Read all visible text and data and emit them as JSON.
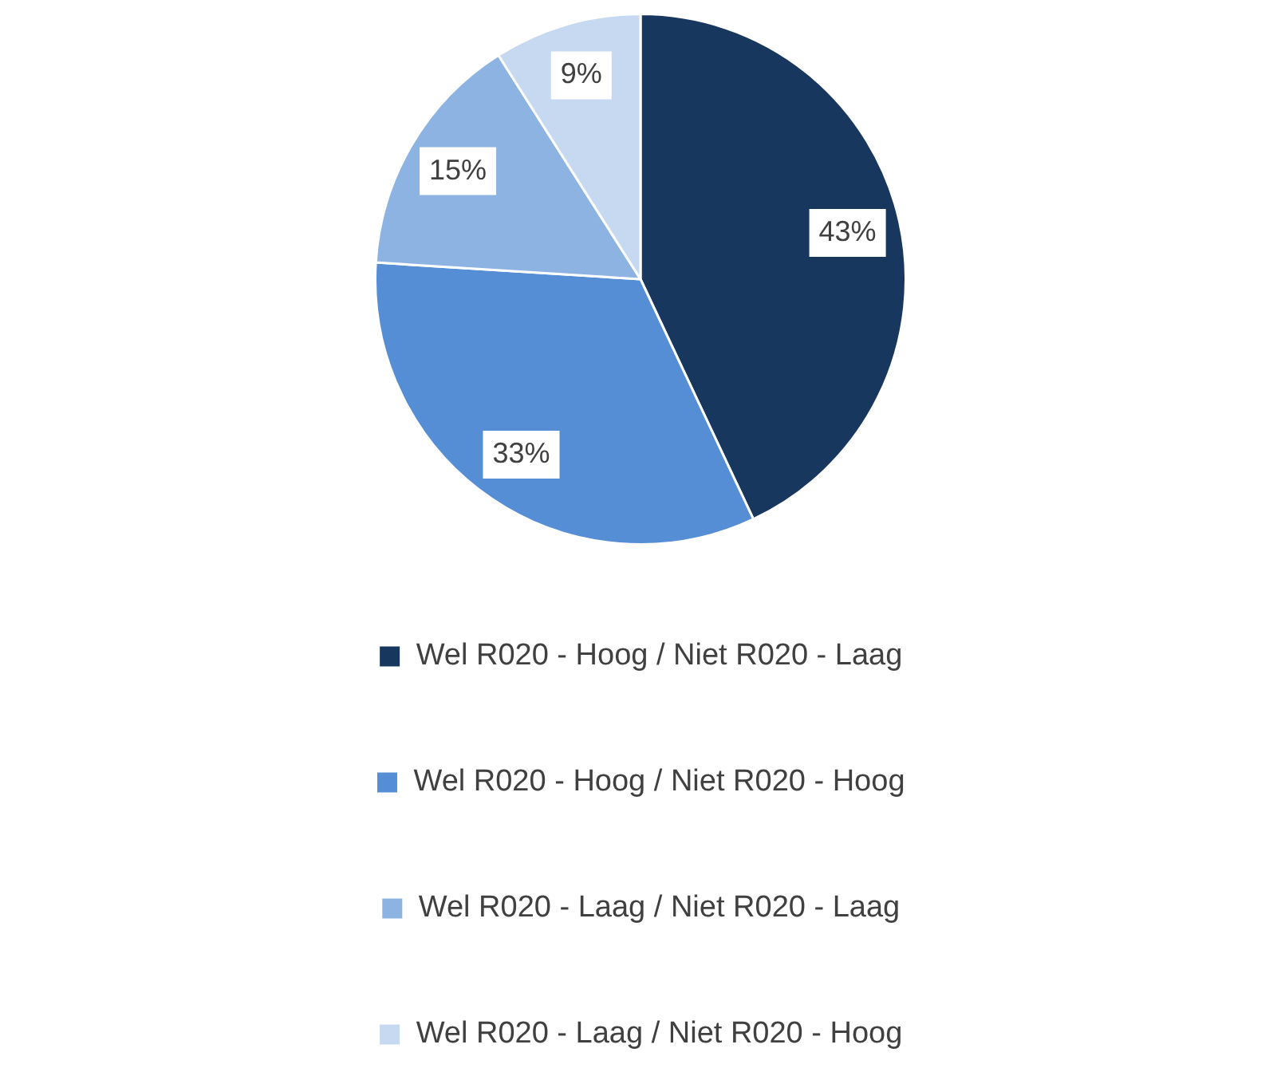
{
  "chart_data": {
    "type": "pie",
    "categories": [
      "Wel R020 - Hoog / Niet R020 - Laag",
      "Wel R020 - Hoog / Niet R020 - Hoog",
      "Wel R020 - Laag / Niet R020 - Laag",
      "Wel R020 - Laag / Niet R020 - Hoog"
    ],
    "values": [
      43,
      33,
      15,
      9
    ],
    "colors": [
      "#17375e",
      "#558ed5",
      "#8db3e2",
      "#c6d9f1"
    ],
    "value_labels": [
      "43%",
      "33%",
      "15%",
      "9%"
    ],
    "legend": "bottom"
  }
}
